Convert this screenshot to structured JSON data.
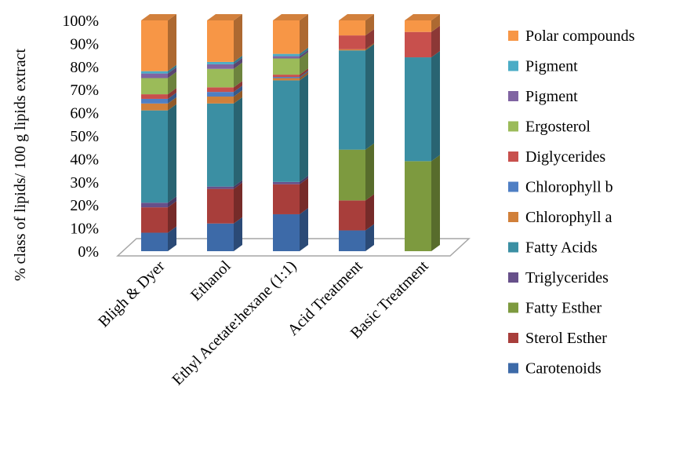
{
  "chart_data": {
    "type": "bar",
    "stacked": true,
    "three_d": true,
    "title": "",
    "ylabel": "% class of lipids/ 100 g lipids extract",
    "xlabel": "",
    "ylim": [
      0,
      100
    ],
    "y_ticks": [
      "0%",
      "10%",
      "20%",
      "30%",
      "40%",
      "50%",
      "60%",
      "70%",
      "80%",
      "90%",
      "100%"
    ],
    "legend_position": "right",
    "categories": [
      "Bligh & Dyer",
      "Ethanol",
      "Ethyl Acetate:hexane (1:1)",
      "Acid Treatment",
      "Basic Treatment"
    ],
    "series": [
      {
        "name": "Carotenoids",
        "color": "#3d6aa8",
        "values": [
          8,
          12,
          16,
          9,
          0
        ]
      },
      {
        "name": "Sterol Esther",
        "color": "#a83e3b",
        "values": [
          11,
          15,
          13,
          13,
          0
        ]
      },
      {
        "name": "Fatty Esther",
        "color": "#7d9a3f",
        "values": [
          0,
          0,
          0,
          22,
          39
        ]
      },
      {
        "name": "Triglycerides",
        "color": "#67508a",
        "values": [
          2,
          1,
          1,
          0,
          0
        ]
      },
      {
        "name": "Fatty Acids",
        "color": "#3b8fa3",
        "values": [
          40,
          36,
          44,
          43,
          45
        ]
      },
      {
        "name": "Chlorophyll a",
        "color": "#d1803a",
        "values": [
          3,
          3,
          1,
          0.5,
          0
        ]
      },
      {
        "name": "Chlorophyll b",
        "color": "#4f7fc4",
        "values": [
          2,
          2,
          0.5,
          0,
          0
        ]
      },
      {
        "name": "Diglycerides",
        "color": "#c8504d",
        "values": [
          2,
          2,
          1,
          6,
          11
        ]
      },
      {
        "name": "Ergosterol",
        "color": "#9bbb59",
        "values": [
          7,
          8,
          7,
          0,
          0
        ]
      },
      {
        "name": "Pigment",
        "color": "#8064a2",
        "values": [
          2,
          2,
          1,
          0,
          0
        ]
      },
      {
        "name": "Pigment",
        "color": "#4bacc6",
        "values": [
          1,
          1,
          1,
          0,
          0
        ]
      },
      {
        "name": "Polar compounds",
        "color": "#f79646",
        "values": [
          22,
          18,
          14.5,
          6.5,
          5
        ]
      }
    ],
    "legend_order": [
      11,
      10,
      9,
      8,
      7,
      6,
      5,
      4,
      3,
      2,
      1,
      0
    ]
  }
}
